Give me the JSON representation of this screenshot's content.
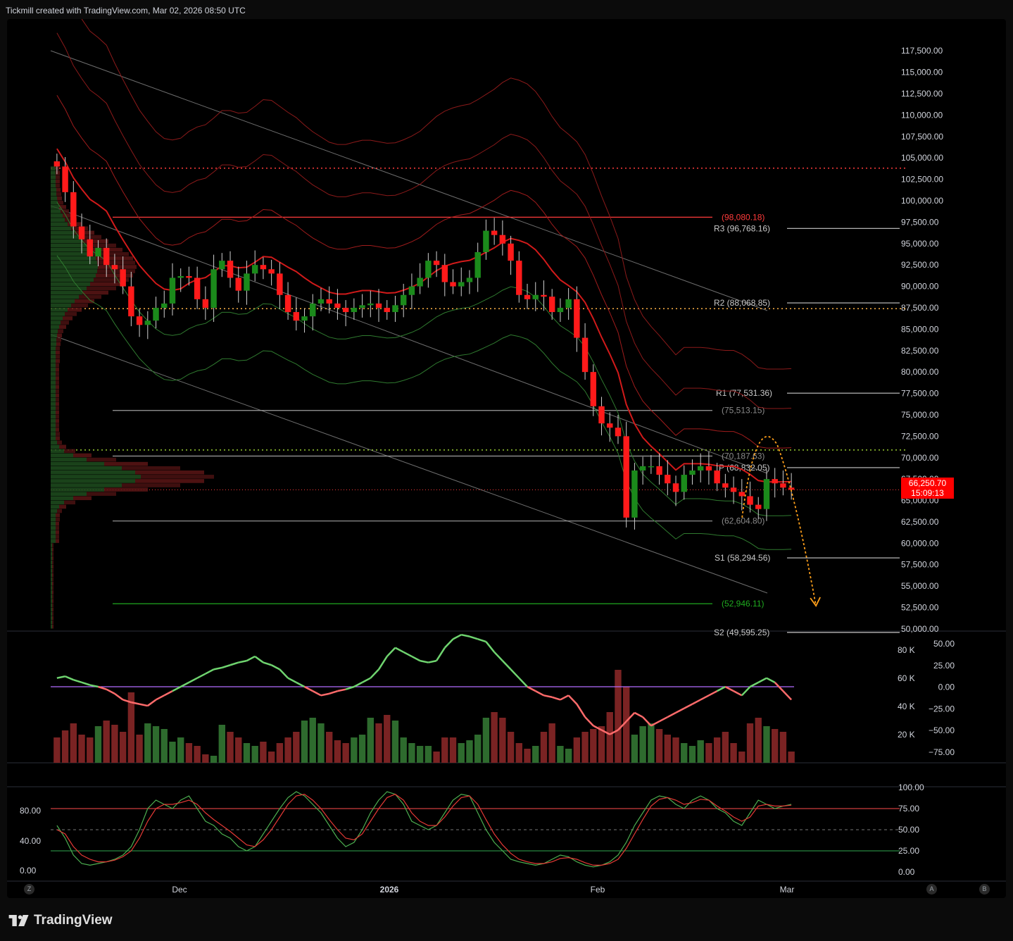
{
  "header": {
    "text": "Tickmill created with TradingView.com, Mar 02, 2026 08:50 UTC"
  },
  "footer": {
    "brand": "TradingView"
  },
  "buttons": {
    "left": "Z",
    "right_a": "A",
    "right_b": "B"
  },
  "price_tag": {
    "price": "66,250.70",
    "countdown": "15:09:13",
    "color": "#ff0000"
  },
  "colors": {
    "up": "#1b8a1b",
    "down": "#ff1a1a",
    "bg": "#000000",
    "axis_text": "#d1d4dc"
  },
  "chart_data": [
    {
      "type": "candlestick",
      "panel": "price",
      "y_ticks": [
        "117,500.00",
        "115,000.00",
        "112,500.00",
        "110,000.00",
        "107,500.00",
        "105,000.00",
        "102,500.00",
        "100,000.00",
        "97,500.00",
        "95,000.00",
        "92,500.00",
        "90,000.00",
        "87,500.00",
        "85,000.00",
        "82,500.00",
        "80,000.00",
        "77,500.00",
        "75,000.00",
        "72,500.00",
        "70,000.00",
        "67,500.00",
        "65,000.00",
        "62,500.00",
        "60,000.00",
        "57,500.00",
        "55,000.00",
        "52,500.00",
        "50,000.00"
      ],
      "ylim": [
        49500,
        119000
      ],
      "x_labels": [
        "Dec",
        "2026",
        "Feb",
        "Mar"
      ],
      "close": [
        104000,
        101000,
        97000,
        95500,
        93500,
        94500,
        92500,
        92000,
        90000,
        86500,
        85500,
        86000,
        87500,
        88000,
        91000,
        91200,
        91000,
        88500,
        87500,
        92000,
        93000,
        91000,
        89500,
        91500,
        92500,
        92000,
        91500,
        89000,
        87000,
        86000,
        86500,
        88000,
        88500,
        88000,
        87500,
        87000,
        87500,
        87800,
        88000,
        87500,
        87000,
        87800,
        89000,
        90000,
        91000,
        93000,
        92500,
        90500,
        90000,
        90500,
        91000,
        94000,
        96500,
        96000,
        95000,
        93000,
        89000,
        88500,
        89000,
        88800,
        87000,
        87500,
        88500,
        84000,
        80000,
        76000,
        74000,
        73500,
        72500,
        63000,
        68500,
        69000,
        69000,
        68000,
        67000,
        66000,
        68000,
        68500,
        69000,
        68500,
        67000,
        66500,
        66000,
        65500,
        64500,
        64000,
        67500,
        67000,
        66500,
        66250
      ],
      "annotations": [
        "(98,080.18)",
        "R3 (96,768.16)",
        "R2 (88,068.85)",
        "R1 (77,531.36)",
        "(75,513.15)",
        "(70,187.63)",
        "P (68,832.05)",
        "(62,604.80)",
        "S1 (58,294.56)",
        "(52,946.11)",
        "S2 (49,595.25)"
      ],
      "annotation_values": [
        98080.18,
        96768.16,
        88068.85,
        77531.36,
        75513.15,
        70187.63,
        68832.05,
        62604.8,
        58294.56,
        52946.11,
        49595.25
      ],
      "current_price": 66250.7
    },
    {
      "type": "bar+line",
      "panel": "volume",
      "y_ticks_left": [
        "80 K",
        "60 K",
        "40 K",
        "20 K"
      ],
      "y_ticks_right": [
        "50.00",
        "25.00",
        "0.00",
        "−25.00",
        "−50.00",
        "−75.00"
      ],
      "ylim": [
        0,
        80000
      ],
      "volume": [
        18000,
        23000,
        28000,
        20000,
        18000,
        26000,
        30000,
        27000,
        22000,
        50000,
        20000,
        28000,
        26000,
        24000,
        15000,
        18000,
        14000,
        12000,
        6000,
        5000,
        27000,
        22000,
        18000,
        14000,
        12000,
        15000,
        8000,
        14000,
        18000,
        22000,
        30000,
        32000,
        28000,
        22000,
        16000,
        14000,
        18000,
        20000,
        32000,
        28000,
        34000,
        30000,
        18000,
        14000,
        12000,
        12000,
        8000,
        18000,
        18000,
        14000,
        16000,
        20000,
        32000,
        36000,
        32000,
        22000,
        14000,
        10000,
        12000,
        22000,
        28000,
        12000,
        10000,
        18000,
        22000,
        24000,
        26000,
        36000,
        66000,
        54000,
        20000,
        26000,
        28000,
        24000,
        20000,
        18000,
        14000,
        12000,
        16000,
        14000,
        18000,
        22000,
        14000,
        8000,
        28000,
        32000,
        26000,
        24000,
        22000,
        8000
      ],
      "osc": [
        10,
        12,
        8,
        5,
        2,
        0,
        -3,
        -8,
        -15,
        -18,
        -20,
        -22,
        -15,
        -10,
        -5,
        0,
        5,
        10,
        15,
        20,
        22,
        25,
        28,
        30,
        35,
        28,
        25,
        20,
        10,
        5,
        0,
        -5,
        -10,
        -8,
        -5,
        -3,
        0,
        5,
        10,
        20,
        35,
        45,
        40,
        35,
        30,
        28,
        30,
        45,
        55,
        60,
        58,
        55,
        52,
        40,
        30,
        20,
        10,
        0,
        -5,
        -10,
        -12,
        -15,
        -10,
        -20,
        -35,
        -45,
        -50,
        -55,
        -50,
        -40,
        -30,
        -35,
        -45,
        -40,
        -35,
        -30,
        -25,
        -20,
        -15,
        -10,
        -5,
        0,
        -5,
        -10,
        0,
        5,
        10,
        5,
        -5,
        -15
      ]
    },
    {
      "type": "line",
      "panel": "stochastic",
      "y_ticks_left": [
        "80.00",
        "40.00",
        "0.00"
      ],
      "y_ticks_right": [
        "100.00",
        "75.00",
        "50.00",
        "25.00",
        "0.00"
      ],
      "ylim": [
        0,
        100
      ],
      "k": [
        55,
        40,
        20,
        10,
        8,
        10,
        12,
        15,
        20,
        30,
        50,
        75,
        85,
        80,
        75,
        85,
        90,
        75,
        60,
        55,
        45,
        40,
        30,
        25,
        30,
        45,
        60,
        75,
        88,
        95,
        90,
        80,
        70,
        55,
        40,
        30,
        35,
        50,
        70,
        85,
        95,
        92,
        80,
        60,
        55,
        50,
        55,
        70,
        85,
        92,
        90,
        70,
        50,
        35,
        25,
        15,
        12,
        10,
        8,
        10,
        15,
        20,
        18,
        12,
        8,
        6,
        8,
        12,
        20,
        35,
        55,
        70,
        85,
        90,
        88,
        80,
        75,
        85,
        90,
        85,
        75,
        70,
        60,
        55,
        70,
        85,
        80,
        75,
        78,
        80
      ],
      "d": [
        50,
        45,
        30,
        20,
        15,
        12,
        12,
        14,
        18,
        25,
        40,
        60,
        75,
        80,
        80,
        82,
        85,
        80,
        70,
        62,
        55,
        48,
        40,
        32,
        30,
        38,
        50,
        65,
        80,
        90,
        92,
        85,
        75,
        62,
        50,
        40,
        38,
        45,
        60,
        75,
        88,
        92,
        85,
        70,
        60,
        55,
        55,
        65,
        78,
        88,
        90,
        80,
        62,
        45,
        32,
        22,
        15,
        12,
        10,
        10,
        12,
        16,
        17,
        15,
        11,
        8,
        8,
        10,
        15,
        28,
        45,
        62,
        78,
        86,
        88,
        85,
        80,
        82,
        86,
        85,
        78,
        72,
        65,
        60,
        65,
        78,
        80,
        78,
        78,
        79
      ],
      "levels": [
        75,
        50,
        25
      ]
    }
  ]
}
